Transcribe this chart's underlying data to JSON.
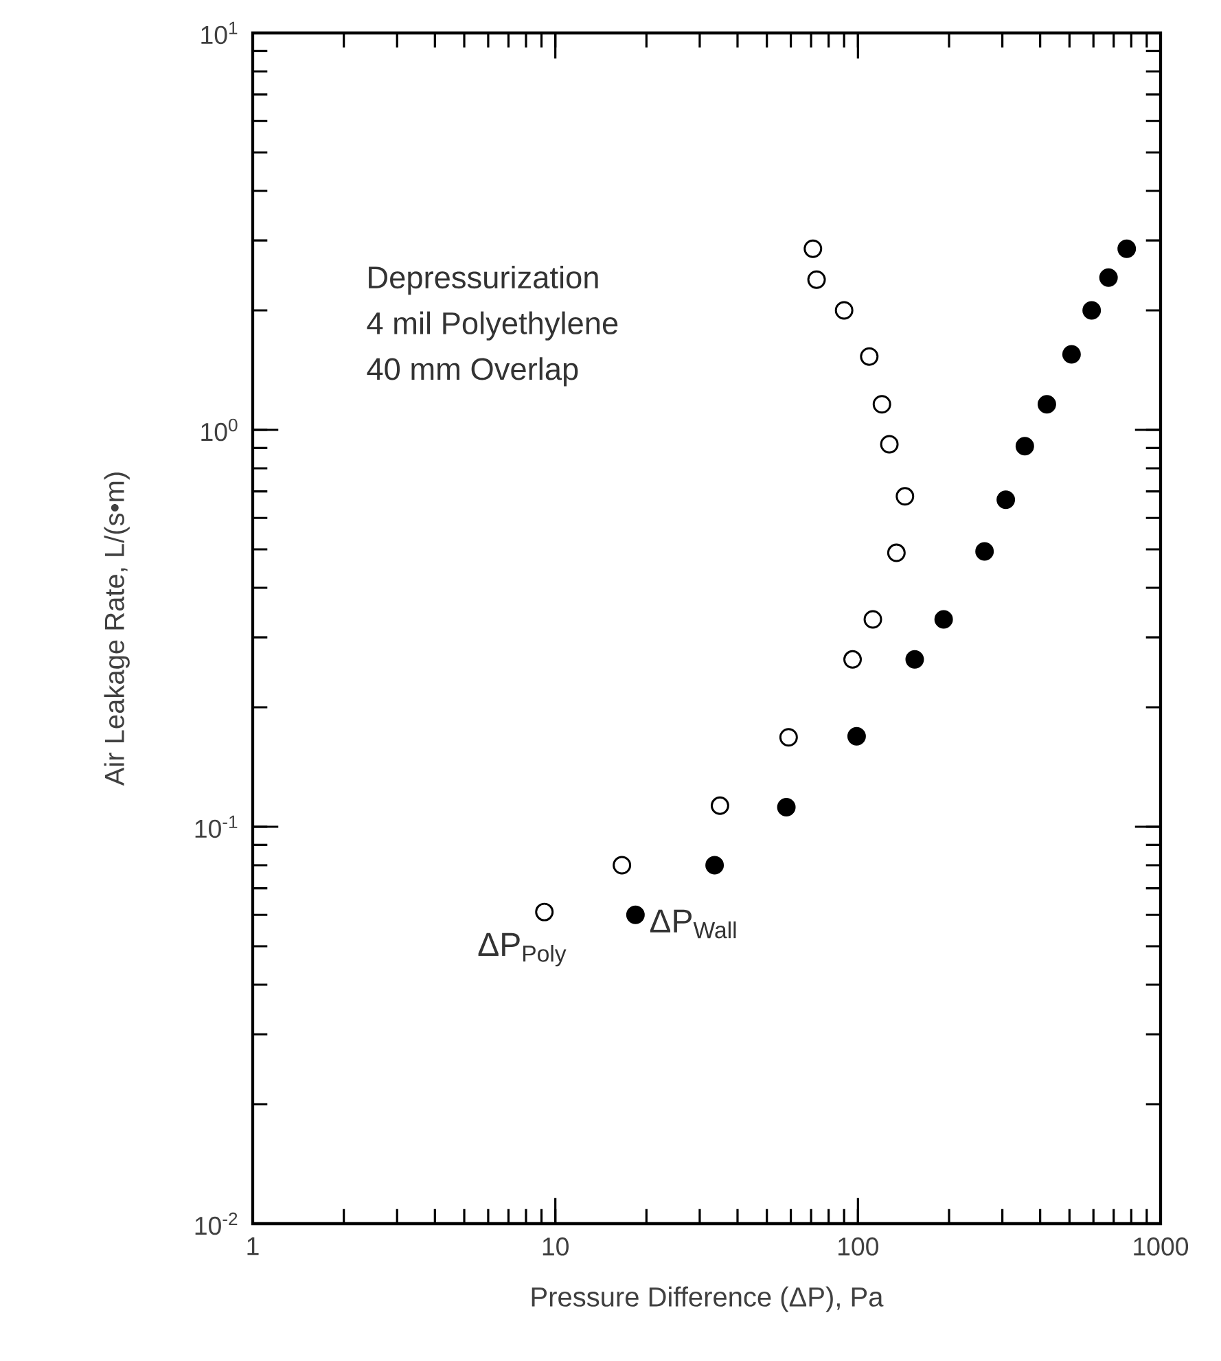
{
  "chart_data": {
    "type": "scatter",
    "xlabel": "Pressure Difference (ΔP), Pa",
    "ylabel": "Air Leakage Rate, L/(s•m)",
    "log": "xy",
    "marker": "circle",
    "legend": false,
    "grid": false,
    "annotations": [
      "Depressurization",
      "4 mil Polyethylene",
      "40 mm Overlap"
    ],
    "xlim": [
      1,
      1000
    ],
    "ylim": [
      0.01,
      10
    ],
    "xticks": [
      1,
      10,
      100,
      1000
    ],
    "yticks": [
      {
        "value": 0.01,
        "label": "10$^{-2}$"
      },
      {
        "value": 0.1,
        "label": "10$^{-1}$"
      },
      {
        "value": 1,
        "label": "10$^{0}$"
      },
      {
        "value": 10,
        "label": "10$^{1}$"
      }
    ],
    "series": [
      {
        "name": "ΔP$_{Poly}$",
        "color": "#ffffff",
        "x": [
          71,
          73,
          90,
          109,
          120,
          127,
          143,
          134,
          112,
          96,
          59,
          35,
          16.6,
          9.2
        ],
        "values": [
          2.86,
          2.39,
          2.0,
          1.53,
          1.16,
          0.92,
          0.68,
          0.49,
          0.333,
          0.264,
          0.168,
          0.113,
          0.08,
          0.061
        ]
      },
      {
        "name": "ΔP$_{Wall}$",
        "color": "#000000",
        "x": [
          773,
          673,
          592,
          508,
          421,
          356,
          308,
          262,
          192,
          154,
          99,
          58,
          33.6,
          18.4
        ],
        "values": [
          2.86,
          2.42,
          2.0,
          1.55,
          1.16,
          0.91,
          0.667,
          0.494,
          0.333,
          0.264,
          0.169,
          0.112,
          0.08,
          0.06
        ]
      }
    ]
  }
}
